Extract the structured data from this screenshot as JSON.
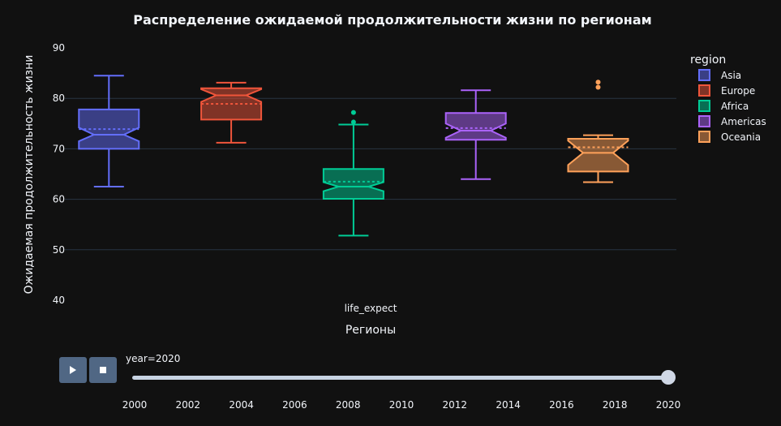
{
  "chart_data": {
    "type": "box",
    "title": "Распределение ожидаемой продолжительности жизни по регионам",
    "xlabel": "Регионы",
    "ylabel": "Ожидаемая продолжительность жизни",
    "x_category": "life_expect",
    "ylim": [
      40,
      90
    ],
    "yticks": [
      40,
      50,
      60,
      70,
      80,
      90
    ],
    "grid": true,
    "notched": true,
    "boxmean": true,
    "legend_title": "region",
    "legend_position": "right",
    "series": [
      {
        "name": "Asia",
        "color": "#636efa",
        "min": 62.5,
        "q1": 70.0,
        "median": 72.8,
        "q3": 77.8,
        "max": 84.5,
        "mean": 73.9,
        "notch_low": 71.5,
        "notch_high": 74.2,
        "outliers": []
      },
      {
        "name": "Europe",
        "color": "#ef553b",
        "min": 71.2,
        "q1": 75.8,
        "median": 80.6,
        "q3": 82.0,
        "max": 83.1,
        "mean": 78.9,
        "notch_low": 79.3,
        "notch_high": 81.8,
        "outliers": []
      },
      {
        "name": "Africa",
        "color": "#00cc96",
        "min": 52.8,
        "q1": 60.1,
        "median": 62.5,
        "q3": 66.0,
        "max": 74.8,
        "mean": 63.5,
        "notch_low": 61.6,
        "notch_high": 63.4,
        "outliers": [
          75.3,
          77.2
        ]
      },
      {
        "name": "Americas",
        "color": "#ab63fa",
        "min": 64.0,
        "q1": 71.8,
        "median": 73.6,
        "q3": 77.1,
        "max": 81.6,
        "mean": 74.1,
        "notch_low": 72.2,
        "notch_high": 75.0,
        "outliers": []
      },
      {
        "name": "Oceania",
        "color": "#ffa15a",
        "min": 63.4,
        "q1": 65.5,
        "median": 69.2,
        "q3": 72.0,
        "max": 72.7,
        "mean": 70.3,
        "notch_low": 66.8,
        "notch_high": 71.6,
        "outliers": [
          82.2,
          83.2
        ]
      }
    ]
  },
  "slider": {
    "label": "year=2020",
    "current_value": 2020,
    "ticks": [
      "2000",
      "2002",
      "2004",
      "2006",
      "2008",
      "2010",
      "2012",
      "2014",
      "2016",
      "2018",
      "2020"
    ]
  },
  "controls": {
    "play_icon": "play-icon",
    "stop_icon": "stop-icon"
  }
}
